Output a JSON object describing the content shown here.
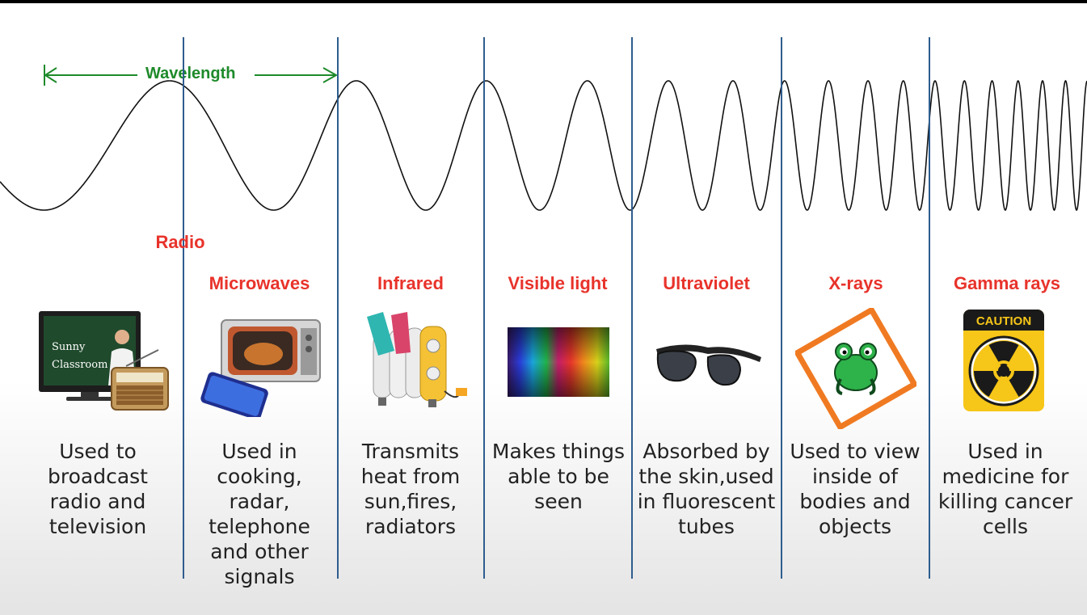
{
  "wavelength_label": "Wavelength",
  "bands": [
    {
      "name": "Radio",
      "description": "Used to broadcast radio and television",
      "image": "tv-and-radio-icon"
    },
    {
      "name": "Microwaves",
      "description": "Used in cooking, radar, telephone and other signals",
      "image": "microwave-oven-icon"
    },
    {
      "name": "Infrared",
      "description": "Transmits heat from sun,fires, radiators",
      "image": "radiator-heater-icon"
    },
    {
      "name": "Visible light",
      "description": "Makes things able to be seen",
      "image": "color-spectrum-icon"
    },
    {
      "name": "Ultraviolet",
      "description": "Absorbed by the skin,used in fluorescent tubes",
      "image": "sunglasses-icon"
    },
    {
      "name": "X-rays",
      "description": "Used to view inside of bodies and objects",
      "image": "frog-warning-sign-icon"
    },
    {
      "name": "Gamma rays",
      "description": "Used in medicine for killing cancer cells",
      "image": "radiation-caution-sign-icon"
    }
  ],
  "tv_screen_text": "Sunny Classroom",
  "caution_text": "CAUTION",
  "colors": {
    "band_label": "#e8332b",
    "wavelength": "#1e8a2a",
    "divider": "#2e5d8e",
    "wave": "#111111"
  }
}
